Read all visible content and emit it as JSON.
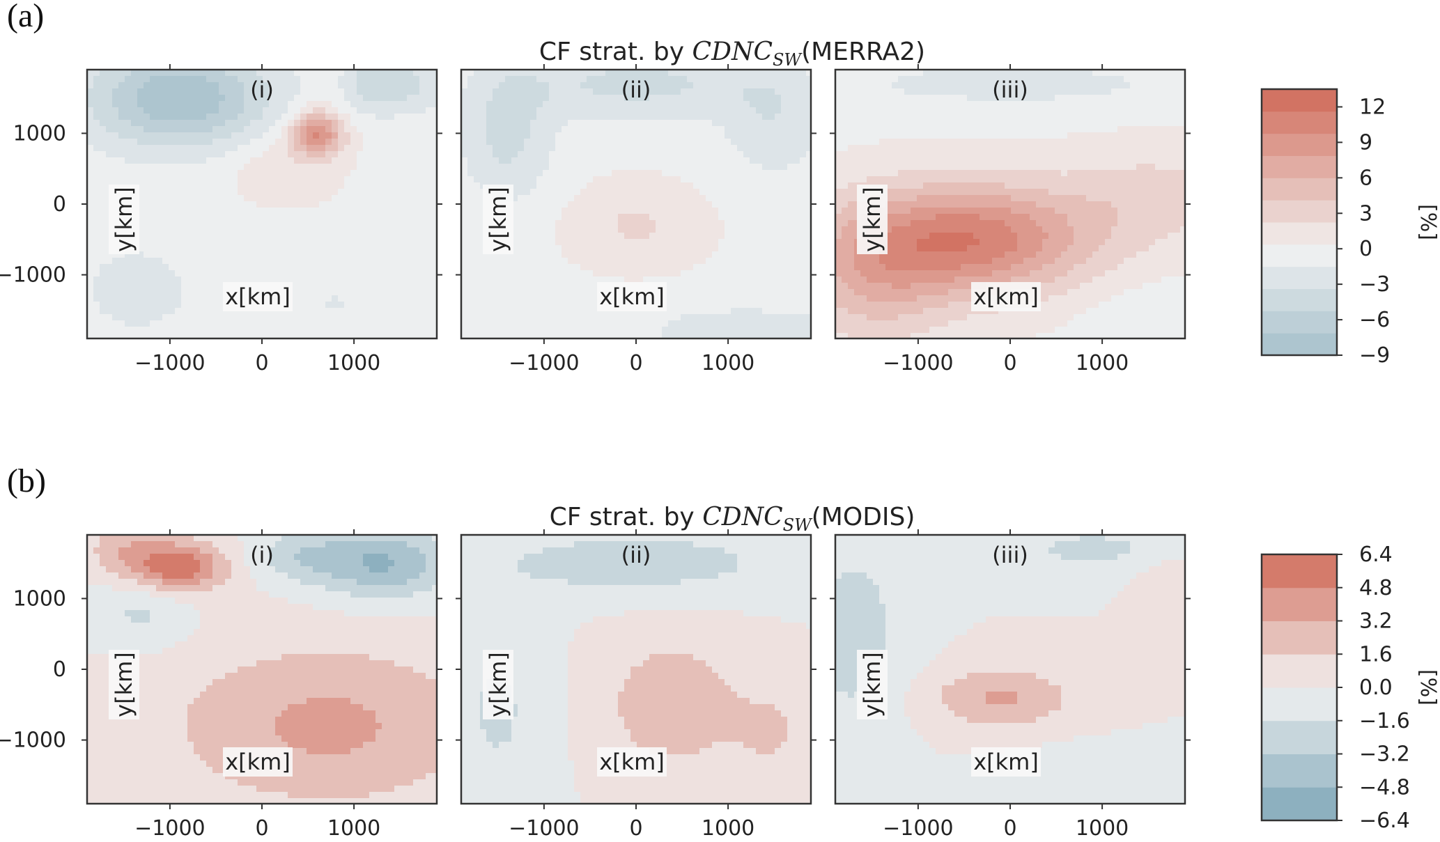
{
  "figure": {
    "panel_a_label": "(a)",
    "panel_b_label": "(b)"
  },
  "chart_data": [
    {
      "type": "heatmap",
      "title_prefix": "CF strat. by ",
      "title_math": "CDNC",
      "title_math_sub": "SW",
      "title_suffix": "(MERRA2)",
      "subplots": [
        "(i)",
        "(ii)",
        "(iii)"
      ],
      "xlabel": "x[km]",
      "ylabel": "y[km]",
      "xlim": [
        -1900,
        1900
      ],
      "ylim": [
        -1900,
        1900
      ],
      "xticks": [
        -1000,
        0,
        1000
      ],
      "yticks": [
        1000,
        0,
        -1000
      ],
      "colorbar": {
        "label": "[%]",
        "min": -9,
        "max": 13.5,
        "levels": 12,
        "ticks": [
          12,
          9,
          6,
          3,
          0,
          -3,
          -6,
          -9
        ]
      },
      "fields": [
        [
          {
            "x": -900,
            "y": 1500,
            "sx": 700,
            "sy": 500,
            "a": -9
          },
          {
            "x": 1300,
            "y": 1700,
            "sx": 500,
            "sy": 300,
            "a": -5
          },
          {
            "x": 600,
            "y": 1000,
            "sx": 200,
            "sy": 220,
            "a": 10
          },
          {
            "x": 700,
            "y": 1700,
            "sx": 200,
            "sy": 250,
            "a": 3
          },
          {
            "x": 200,
            "y": 500,
            "sx": 400,
            "sy": 350,
            "a": 2
          },
          {
            "x": -1400,
            "y": -1200,
            "sx": 700,
            "sy": 800,
            "a": -1.8
          },
          {
            "x": 800,
            "y": -1400,
            "sx": 800,
            "sy": 500,
            "a": -1.5
          }
        ],
        [
          {
            "x": 0,
            "y": 1700,
            "sx": 900,
            "sy": 350,
            "a": -4
          },
          {
            "x": -1400,
            "y": 1000,
            "sx": 350,
            "sy": 700,
            "a": -4
          },
          {
            "x": 1500,
            "y": 1200,
            "sx": 400,
            "sy": 600,
            "a": -3
          },
          {
            "x": 0,
            "y": -300,
            "sx": 500,
            "sy": 400,
            "a": 2.5
          },
          {
            "x": 1200,
            "y": -1800,
            "sx": 800,
            "sy": 250,
            "a": -3
          }
        ],
        [
          {
            "x": -400,
            "y": -500,
            "sx": 900,
            "sy": 550,
            "a": 11
          },
          {
            "x": -1500,
            "y": -1000,
            "sx": 600,
            "sy": 700,
            "a": 5
          },
          {
            "x": 1600,
            "y": 100,
            "sx": 700,
            "sy": 500,
            "a": 3
          },
          {
            "x": 0,
            "y": 1700,
            "sx": 1500,
            "sy": 250,
            "a": -2.2
          },
          {
            "x": 1600,
            "y": -1600,
            "sx": 500,
            "sy": 300,
            "a": -1.5
          }
        ]
      ]
    },
    {
      "type": "heatmap",
      "title_prefix": "CF strat. by ",
      "title_math": "CDNC",
      "title_math_sub": "SW",
      "title_suffix": "(MODIS)",
      "subplots": [
        "(i)",
        "(ii)",
        "(iii)"
      ],
      "xlabel": "x[km]",
      "ylabel": "y[km]",
      "xlim": [
        -1900,
        1900
      ],
      "ylim": [
        -1900,
        1900
      ],
      "xticks": [
        -1000,
        0,
        1000
      ],
      "yticks": [
        1000,
        0,
        -1000
      ],
      "colorbar": {
        "label": "[%]",
        "min": -6.4,
        "max": 6.4,
        "levels": 8,
        "ticks": [
          6.4,
          4.8,
          3.2,
          1.6,
          0.0,
          -1.6,
          -3.2,
          -4.8,
          -6.4
        ]
      },
      "fields": [
        [
          {
            "x": -900,
            "y": 1450,
            "sx": 350,
            "sy": 250,
            "a": 6.2
          },
          {
            "x": -1500,
            "y": 1700,
            "sx": 300,
            "sy": 300,
            "a": 2.5
          },
          {
            "x": 1300,
            "y": 1500,
            "sx": 500,
            "sy": 350,
            "a": -5
          },
          {
            "x": 400,
            "y": 1600,
            "sx": 350,
            "sy": 250,
            "a": -2.5
          },
          {
            "x": 700,
            "y": -800,
            "sx": 1200,
            "sy": 800,
            "a": 3.6
          },
          {
            "x": -1300,
            "y": 800,
            "sx": 350,
            "sy": 350,
            "a": -2
          }
        ],
        [
          {
            "x": 400,
            "y": -500,
            "sx": 550,
            "sy": 700,
            "a": 2.8
          },
          {
            "x": 0,
            "y": 1500,
            "sx": 1200,
            "sy": 350,
            "a": -2.5
          },
          {
            "x": -1500,
            "y": -600,
            "sx": 400,
            "sy": 1000,
            "a": -1.8
          },
          {
            "x": 1500,
            "y": -900,
            "sx": 300,
            "sy": 500,
            "a": 1.6
          }
        ],
        [
          {
            "x": -100,
            "y": -400,
            "sx": 550,
            "sy": 300,
            "a": 3.4
          },
          {
            "x": -1700,
            "y": 500,
            "sx": 400,
            "sy": 1000,
            "a": -2.4
          },
          {
            "x": 900,
            "y": 1700,
            "sx": 700,
            "sy": 250,
            "a": -2
          },
          {
            "x": 1700,
            "y": 1300,
            "sx": 250,
            "sy": 250,
            "a": 1.2
          },
          {
            "x": 900,
            "y": -1600,
            "sx": 600,
            "sy": 300,
            "a": -1.6
          }
        ]
      ]
    }
  ]
}
